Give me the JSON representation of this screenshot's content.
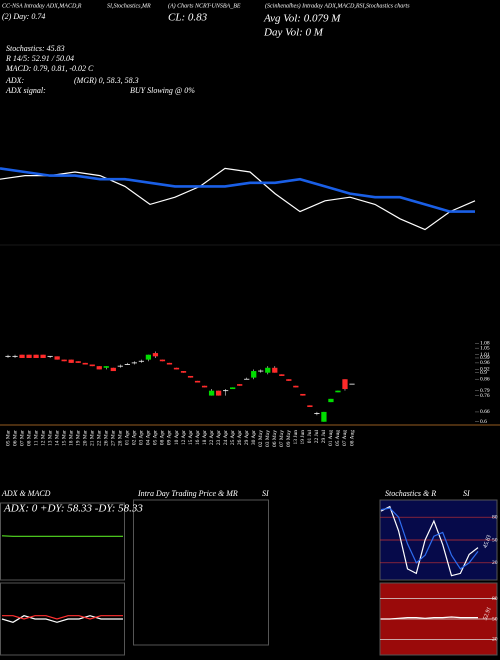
{
  "header": {
    "t1": "CC-NSA Intraday ADX,MACD,R",
    "t2": "SI,Stochastics,MR",
    "t3": "(A) Charts NCRT-UNSBA_BE",
    "t4": "(Scinhenalhes) Intraday ADX,MACD,RSI,Stochastics charts",
    "day": "(2) Day: 0.74",
    "cl": "CL: 0.83",
    "avg_vol": "Avg Vol: 0.079 M",
    "day_vol": "Day Vol: 0 M",
    "stoch": "Stochastics: 45.83",
    "rsi": "R 14/5: 52.91 / 50.04",
    "macd": "MACD: 0.79, 0.81, -0.02 C",
    "adx_label": "ADX:",
    "adx": "(MGR) 0, 58.3, 58.3",
    "signal_label": "ADX signal:",
    "signal": "BUY Slowing @ 0%"
  },
  "chart_data": [
    {
      "type": "line",
      "ylim": [
        0.6,
        1.1
      ],
      "series": [
        {
          "name": "Price",
          "color": "#ffffff",
          "values": [
            0.88,
            0.89,
            0.89,
            0.9,
            0.89,
            0.86,
            0.81,
            0.83,
            0.86,
            0.91,
            0.9,
            0.84,
            0.79,
            0.82,
            0.83,
            0.81,
            0.77,
            0.74,
            0.79,
            0.82
          ]
        },
        {
          "name": "Average",
          "color": "#1a5fe6",
          "values": [
            0.91,
            0.9,
            0.89,
            0.89,
            0.88,
            0.88,
            0.87,
            0.86,
            0.86,
            0.86,
            0.87,
            0.87,
            0.88,
            0.86,
            0.84,
            0.83,
            0.83,
            0.81,
            0.79,
            0.79
          ]
        }
      ]
    },
    {
      "type": "candlestick",
      "ylim": [
        0.58,
        1.1
      ],
      "yticks": [
        1.08,
        1.05,
        1.01,
        0.99,
        0.96,
        0.92,
        0.9,
        0.86,
        0.79,
        0.76,
        0.66,
        0.6
      ],
      "up_color": "#00dd00",
      "down_color": "#ff2a2a",
      "dates": [
        "05 Mar",
        "06 Mar",
        "07 Mar",
        "08 Mar",
        "11 Mar",
        "12 Mar",
        "13 Mar",
        "14 Mar",
        "15 Mar",
        "18 Mar",
        "19 Mar",
        "20 Mar",
        "21 Mar",
        "22 Mar",
        "26 Mar",
        "27 Mar",
        "28 Mar",
        "01 Apr",
        "02 Apr",
        "03 Apr",
        "04 Apr",
        "05 Apr",
        "08 Apr",
        "09 Apr",
        "10 Apr",
        "12 Apr",
        "15 Apr",
        "16 Apr",
        "18 Apr",
        "22 Apr",
        "23 Apr",
        "24 Apr",
        "25 Apr",
        "26 Apr",
        "29 Apr",
        "30 Apr",
        "02 May",
        "03 May",
        "06 May",
        "07 May",
        "09 May",
        "13 Jun",
        "19 Jun",
        "01 Jul",
        "22 Jul",
        "29 Jul",
        "01 Aug",
        "05 Aug",
        "07 Aug",
        "08 Aug"
      ],
      "open": [
        1.0,
        1.0,
        1.01,
        1.01,
        1.01,
        1.01,
        1.0,
        1.0,
        0.98,
        0.98,
        0.97,
        0.96,
        0.95,
        0.94,
        0.93,
        0.93,
        0.94,
        0.95,
        0.96,
        0.97,
        0.98,
        1.02,
        0.98,
        0.96,
        0.93,
        0.91,
        0.88,
        0.85,
        0.82,
        0.76,
        0.79,
        0.79,
        0.8,
        0.83,
        0.86,
        0.87,
        0.91,
        0.9,
        0.93,
        0.89,
        0.86,
        0.82,
        0.77,
        0.7,
        0.65,
        0.6,
        0.72,
        0.78,
        0.86,
        0.83
      ],
      "high": [
        1.01,
        1.01,
        1.01,
        1.01,
        1.01,
        1.01,
        1.0,
        1.0,
        0.98,
        0.98,
        0.97,
        0.96,
        0.95,
        0.94,
        0.94,
        0.93,
        0.95,
        0.96,
        0.97,
        0.98,
        1.01,
        1.03,
        0.98,
        0.96,
        0.93,
        0.91,
        0.88,
        0.85,
        0.82,
        0.8,
        0.79,
        0.8,
        0.81,
        0.83,
        0.87,
        0.92,
        0.92,
        0.94,
        0.94,
        0.89,
        0.86,
        0.82,
        0.77,
        0.7,
        0.66,
        0.66,
        0.74,
        0.79,
        0.86,
        0.83
      ],
      "low": [
        0.99,
        0.99,
        0.99,
        0.99,
        0.99,
        0.99,
        0.99,
        0.98,
        0.97,
        0.96,
        0.96,
        0.95,
        0.94,
        0.92,
        0.92,
        0.91,
        0.93,
        0.95,
        0.95,
        0.96,
        0.97,
        0.99,
        0.97,
        0.95,
        0.92,
        0.9,
        0.87,
        0.84,
        0.81,
        0.76,
        0.76,
        0.76,
        0.8,
        0.82,
        0.86,
        0.86,
        0.9,
        0.89,
        0.9,
        0.88,
        0.85,
        0.81,
        0.76,
        0.69,
        0.64,
        0.6,
        0.72,
        0.78,
        0.79,
        0.83
      ],
      "close": [
        1.0,
        1.0,
        0.99,
        0.99,
        0.99,
        0.99,
        1.0,
        0.98,
        0.97,
        0.96,
        0.96,
        0.95,
        0.94,
        0.92,
        0.94,
        0.91,
        0.94,
        0.95,
        0.96,
        0.97,
        1.01,
        1.0,
        0.97,
        0.95,
        0.92,
        0.9,
        0.87,
        0.84,
        0.81,
        0.79,
        0.76,
        0.79,
        0.81,
        0.82,
        0.86,
        0.91,
        0.91,
        0.93,
        0.9,
        0.88,
        0.85,
        0.81,
        0.76,
        0.69,
        0.65,
        0.66,
        0.74,
        0.79,
        0.8,
        0.83
      ]
    },
    {
      "type": "line",
      "title": "ADX & MACD",
      "annotation": "ADX: 0  +DY: 58.33  -DY: 58.33",
      "ylim": [
        0,
        100
      ],
      "series": [
        {
          "name": "ADX",
          "color": "#55dd22",
          "values": [
            59,
            58.33,
            58.33,
            58.33,
            58.33,
            58.33,
            58.33,
            58.33,
            58.33,
            58.33,
            58.33,
            58.33
          ]
        }
      ]
    },
    {
      "type": "line",
      "ylim": [
        0.7,
        0.9
      ],
      "series": [
        {
          "name": "MACD",
          "color": "#ffffff",
          "values": [
            0.8,
            0.79,
            0.81,
            0.8,
            0.8,
            0.79,
            0.8,
            0.8,
            0.81,
            0.8,
            0.8,
            0.8
          ]
        },
        {
          "name": "Signal",
          "color": "#ff3030",
          "values": [
            0.81,
            0.81,
            0.8,
            0.81,
            0.81,
            0.8,
            0.81,
            0.81,
            0.8,
            0.81,
            0.81,
            0.81
          ]
        }
      ]
    },
    {
      "type": "empty",
      "title": "Intra Day Trading Price & MR",
      "title2": "SI"
    },
    {
      "type": "line",
      "title": "Stochastics & R",
      "title2": "SI",
      "annotation": "45.83",
      "ylim": [
        0,
        100
      ],
      "yticks": [
        80,
        50,
        20
      ],
      "series": [
        {
          "name": "%K",
          "color": "#ffffff",
          "values": [
            88,
            94,
            62,
            12,
            6,
            50,
            75,
            44,
            3,
            6,
            31,
            40
          ]
        },
        {
          "name": "%D",
          "color": "#2f6df0",
          "values": [
            90,
            92,
            80,
            45,
            20,
            30,
            55,
            60,
            30,
            12,
            20,
            35
          ]
        }
      ]
    },
    {
      "type": "line",
      "annotation": "52.91",
      "ylim": [
        0,
        100
      ],
      "yticks": [
        80,
        50,
        20
      ],
      "series": [
        {
          "name": "RSI",
          "color": "#ffffff",
          "values": [
            50,
            50,
            51,
            52,
            52,
            51,
            52,
            52,
            53,
            52,
            52,
            52
          ]
        }
      ]
    }
  ]
}
